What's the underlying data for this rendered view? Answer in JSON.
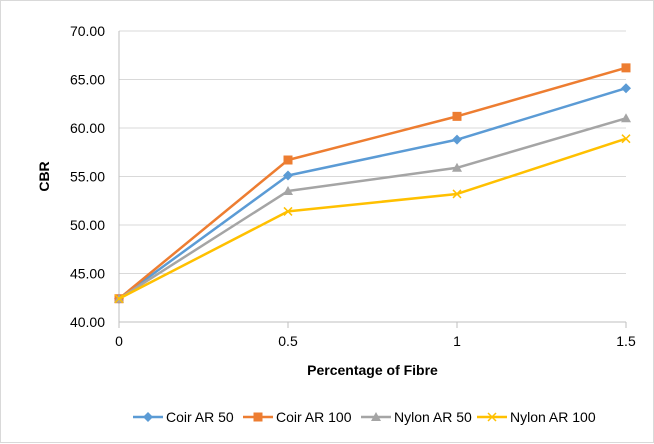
{
  "chart_data": {
    "type": "line",
    "title": "",
    "xlabel": "Percentage of Fibre",
    "ylabel": "CBR",
    "categories": [
      "0",
      "0.5",
      "1",
      "1.5"
    ],
    "x": [
      0,
      0.5,
      1,
      1.5
    ],
    "ylim": [
      40,
      70
    ],
    "yticks": [
      "40.00",
      "45.00",
      "50.00",
      "55.00",
      "60.00",
      "65.00",
      "70.00"
    ],
    "grid": "horizontal",
    "legend_position": "bottom",
    "series": [
      {
        "name": "Coir AR 50",
        "values": [
          42.4,
          55.1,
          58.8,
          64.1
        ],
        "color": "#5b9bd5",
        "marker": "diamond"
      },
      {
        "name": "Coir AR 100",
        "values": [
          42.4,
          56.7,
          61.2,
          66.2
        ],
        "color": "#ed7d31",
        "marker": "square"
      },
      {
        "name": "Nylon AR 50",
        "values": [
          42.4,
          53.5,
          55.9,
          61.0
        ],
        "color": "#a5a5a5",
        "marker": "triangle"
      },
      {
        "name": "Nylon AR 100",
        "values": [
          42.4,
          51.4,
          53.2,
          58.9
        ],
        "color": "#ffc000",
        "marker": "x"
      }
    ]
  }
}
